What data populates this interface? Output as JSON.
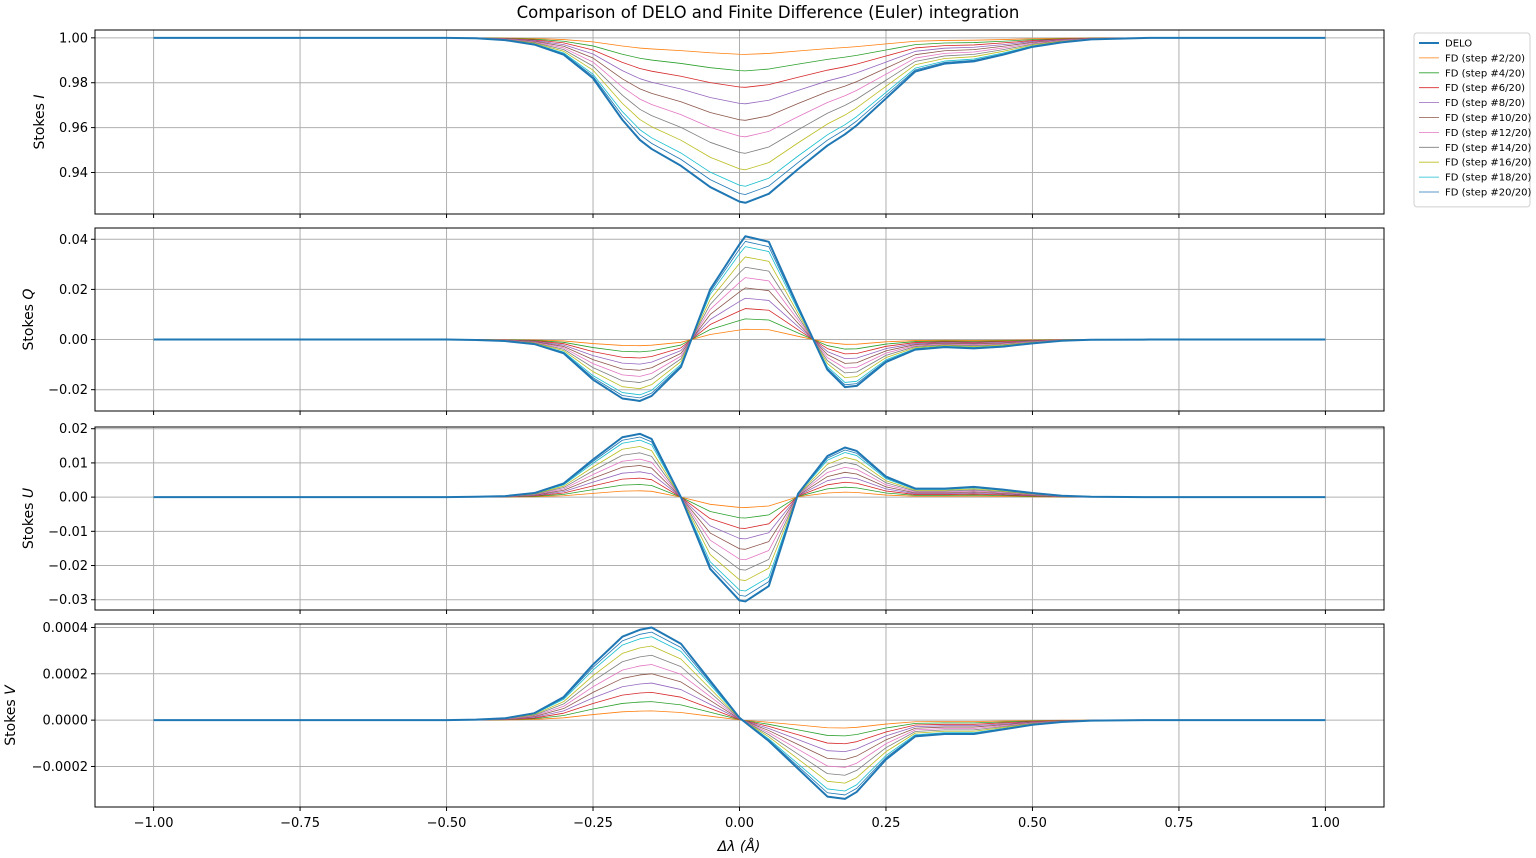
{
  "chart_data": {
    "type": "line",
    "title": "Comparison of DELO and Finite Difference (Euler) integration",
    "xlabel": "Δλ (Å)",
    "xlim": [
      -1.1,
      1.1
    ],
    "x_ticks": [
      -1.0,
      -0.75,
      -0.5,
      -0.25,
      0.0,
      0.25,
      0.5,
      0.75,
      1.0
    ],
    "x_tick_labels": [
      "−1.00",
      "−0.75",
      "−0.50",
      "−0.25",
      "0.00",
      "0.25",
      "0.50",
      "0.75",
      "1.00"
    ],
    "grid": true,
    "legend_placement": "outside-top-right",
    "x": [
      -1.0,
      -0.9,
      -0.8,
      -0.7,
      -0.6,
      -0.5,
      -0.45,
      -0.4,
      -0.35,
      -0.3,
      -0.25,
      -0.2,
      -0.17,
      -0.15,
      -0.1,
      -0.05,
      0.0,
      0.01,
      0.05,
      0.1,
      0.15,
      0.18,
      0.2,
      0.25,
      0.3,
      0.35,
      0.4,
      0.45,
      0.5,
      0.55,
      0.6,
      0.7,
      0.8,
      0.9,
      1.0
    ],
    "series": [
      {
        "name": "DELO",
        "color": "#1f77b4",
        "linewidth": 2
      },
      {
        "name": "FD (step #2/20)",
        "color": "#ff7f0e",
        "linewidth": 0.8,
        "fraction": 0.1
      },
      {
        "name": "FD (step #4/20)",
        "color": "#2ca02c",
        "linewidth": 0.8,
        "fraction": 0.2
      },
      {
        "name": "FD (step #6/20)",
        "color": "#d62728",
        "linewidth": 0.8,
        "fraction": 0.3
      },
      {
        "name": "FD (step #8/20)",
        "color": "#9467bd",
        "linewidth": 0.8,
        "fraction": 0.4
      },
      {
        "name": "FD (step #10/20)",
        "color": "#8c564b",
        "linewidth": 0.8,
        "fraction": 0.5
      },
      {
        "name": "FD (step #12/20)",
        "color": "#e377c2",
        "linewidth": 0.8,
        "fraction": 0.6
      },
      {
        "name": "FD (step #14/20)",
        "color": "#7f7f7f",
        "linewidth": 0.8,
        "fraction": 0.7
      },
      {
        "name": "FD (step #16/20)",
        "color": "#bcbd22",
        "linewidth": 0.8,
        "fraction": 0.8
      },
      {
        "name": "FD (step #18/20)",
        "color": "#17becf",
        "linewidth": 0.8,
        "fraction": 0.9
      },
      {
        "name": "FD (step #20/20)",
        "color": "#1f77b4",
        "linewidth": 0.8,
        "fraction": 0.95
      }
    ],
    "panels": [
      {
        "ylabel": "Stokes I",
        "ylabel_plain": "Stokes ",
        "ylabel_italic": "I",
        "baseline": 1.0,
        "ylim": [
          0.9215,
          1.0035
        ],
        "y_ticks": [
          0.94,
          0.96,
          0.98,
          1.0
        ],
        "y_tick_labels": [
          "0.94",
          "0.96",
          "0.98",
          "1.00"
        ],
        "delo_values": [
          1.0,
          1.0,
          1.0,
          1.0,
          1.0,
          1.0,
          0.9998,
          0.999,
          0.997,
          0.9925,
          0.982,
          0.9635,
          0.9545,
          0.9505,
          0.943,
          0.9335,
          0.927,
          0.9265,
          0.9305,
          0.9415,
          0.952,
          0.957,
          0.961,
          0.973,
          0.985,
          0.9885,
          0.9895,
          0.9925,
          0.996,
          0.998,
          0.9993,
          1.0,
          1.0,
          1.0,
          1.0
        ]
      },
      {
        "ylabel": "Stokes Q",
        "ylabel_plain": "Stokes ",
        "ylabel_italic": "Q",
        "baseline": 0.0,
        "ylim": [
          -0.0285,
          0.0445
        ],
        "y_ticks": [
          -0.02,
          0.0,
          0.02,
          0.04
        ],
        "y_tick_labels": [
          "−0.02",
          "0.00",
          "0.02",
          "0.04"
        ],
        "delo_values": [
          0.0,
          0.0,
          0.0,
          0.0,
          0.0,
          0.0,
          -0.0002,
          -0.0006,
          -0.0018,
          -0.0055,
          -0.016,
          -0.0235,
          -0.0245,
          -0.0225,
          -0.011,
          0.02,
          0.038,
          0.0412,
          0.039,
          0.013,
          -0.012,
          -0.019,
          -0.0185,
          -0.009,
          -0.004,
          -0.003,
          -0.0035,
          -0.0028,
          -0.0015,
          -0.0005,
          -0.0001,
          0.0,
          0.0,
          0.0,
          0.0
        ]
      },
      {
        "ylabel": "Stokes U",
        "ylabel_plain": "Stokes ",
        "ylabel_italic": "U",
        "baseline": 0.0,
        "ylim": [
          -0.033,
          0.0205
        ],
        "y_ticks": [
          -0.03,
          -0.02,
          -0.01,
          0.0,
          0.01,
          0.02
        ],
        "y_tick_labels": [
          "−0.03",
          "−0.02",
          "−0.01",
          "0.00",
          "0.01",
          "0.02"
        ],
        "delo_values": [
          0.0,
          0.0,
          0.0,
          0.0,
          0.0,
          0.0,
          0.0001,
          0.0003,
          0.0012,
          0.004,
          0.011,
          0.0175,
          0.0185,
          0.017,
          0.0,
          -0.021,
          -0.0302,
          -0.0305,
          -0.026,
          0.001,
          0.012,
          0.0145,
          0.0135,
          0.006,
          0.0025,
          0.0025,
          0.003,
          0.0022,
          0.0012,
          0.0004,
          0.0001,
          0.0,
          0.0,
          0.0,
          0.0
        ]
      },
      {
        "ylabel": "Stokes V",
        "ylabel_plain": "Stokes ",
        "ylabel_italic": "V",
        "baseline": 0.0,
        "ylim": [
          -0.000375,
          0.000415
        ],
        "y_ticks": [
          -0.0002,
          0.0,
          0.0002,
          0.0004
        ],
        "y_tick_labels": [
          "−0.0002",
          "0.0000",
          "0.0002",
          "0.0004"
        ],
        "delo_values": [
          0.0,
          0.0,
          0.0,
          0.0,
          0.0,
          0.0,
          2e-06,
          8e-06,
          3e-05,
          0.0001,
          0.00024,
          0.00036,
          0.00039,
          0.0004,
          0.00033,
          0.00017,
          1e-05,
          -1e-05,
          -9e-05,
          -0.00021,
          -0.00033,
          -0.00034,
          -0.00031,
          -0.00017,
          -7e-05,
          -6e-05,
          -6e-05,
          -4e-05,
          -2e-05,
          -8e-06,
          -2e-06,
          0.0,
          0.0,
          0.0,
          0.0
        ]
      }
    ]
  }
}
